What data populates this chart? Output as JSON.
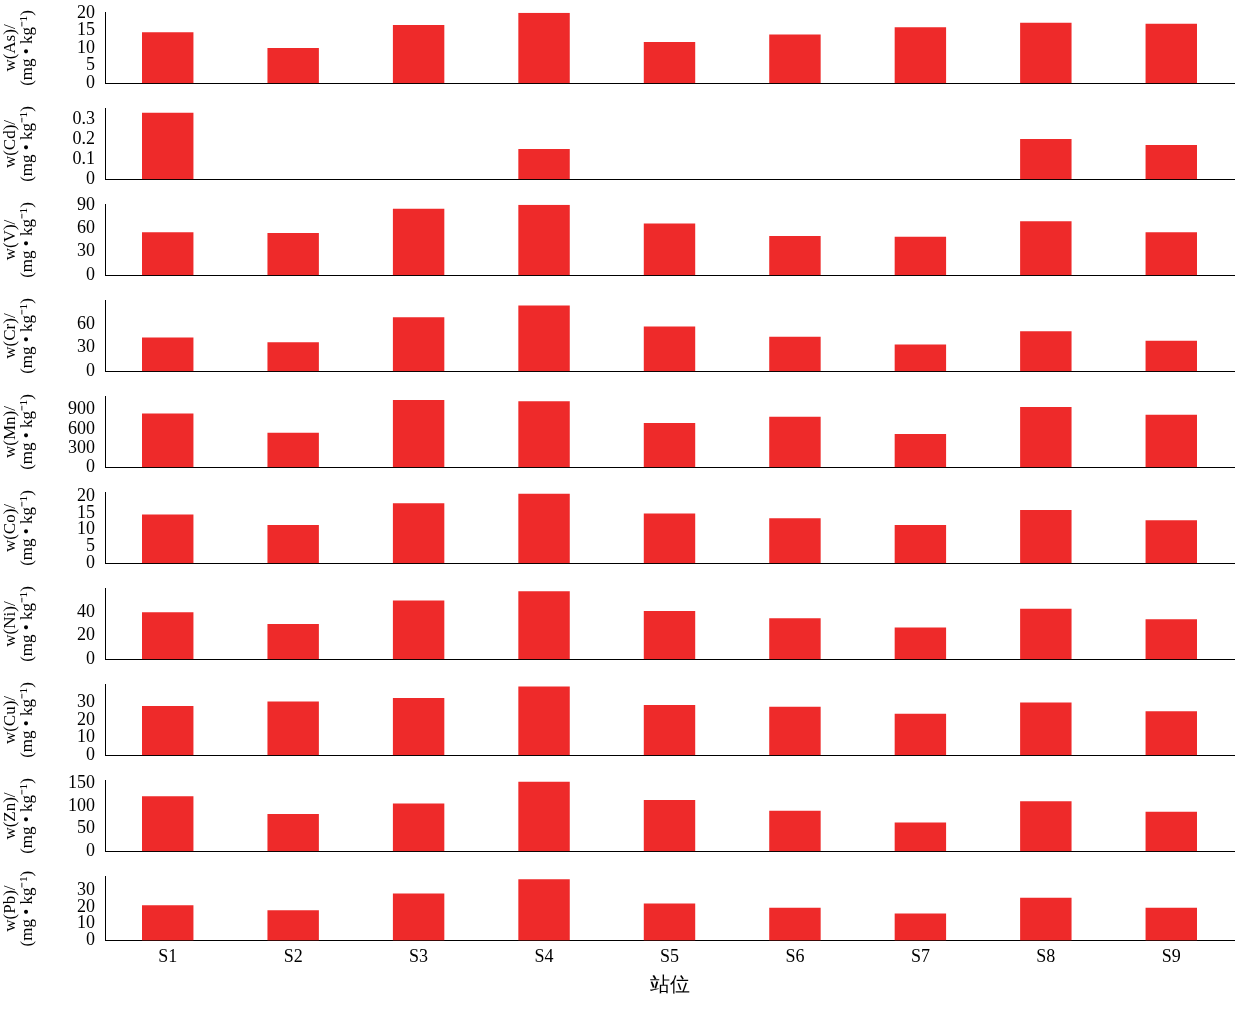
{
  "chart_data": [
    {
      "type": "bar",
      "ylabel": "w(As)/(mg • kg⁻¹)",
      "categories": [
        null,
        null,
        null,
        null,
        null,
        null,
        null,
        null,
        null
      ],
      "values": [
        14.5,
        10,
        16.5,
        20,
        11.7,
        13.8,
        15.9,
        17.2,
        16.9
      ],
      "color": "#ee2a2a",
      "ylim": [
        0,
        20
      ],
      "yticks": [
        0,
        5,
        10,
        15,
        20
      ],
      "tick_labels": "y"
    },
    {
      "type": "bar",
      "ylabel": "w(Cd)/(mg • kg⁻¹)",
      "categories": [
        null,
        null,
        null,
        null,
        null,
        null,
        null,
        null,
        null
      ],
      "values": [
        0.33,
        null,
        null,
        0.15,
        null,
        null,
        null,
        0.2,
        0.17
      ],
      "color": "#ee2a2a",
      "ylim": [
        0,
        0.35
      ],
      "yticks": [
        0,
        0.1,
        0.2,
        0.3
      ],
      "tick_labels": "y"
    },
    {
      "type": "bar",
      "ylabel": "w(V)/(mg • kg⁻¹)",
      "categories": [
        null,
        null,
        null,
        null,
        null,
        null,
        null,
        null,
        null
      ],
      "values": [
        55,
        54,
        85,
        90,
        66,
        50,
        49,
        69,
        55
      ],
      "color": "#ee2a2a",
      "ylim": [
        0,
        90
      ],
      "yticks": [
        0,
        30,
        60,
        90
      ],
      "tick_labels": "y"
    },
    {
      "type": "bar",
      "ylabel": "w(Cr)/(mg • kg⁻¹)",
      "categories": [
        null,
        null,
        null,
        null,
        null,
        null,
        null,
        null,
        null
      ],
      "values": [
        43,
        37,
        69,
        84,
        57,
        44,
        34,
        51,
        39
      ],
      "color": "#ee2a2a",
      "ylim": [
        0,
        90
      ],
      "yticks": [
        0,
        30,
        60
      ],
      "tick_labels": "y"
    },
    {
      "type": "bar",
      "ylabel": "w(Mn)/(mg • kg⁻¹)",
      "categories": [
        null,
        null,
        null,
        null,
        null,
        null,
        null,
        null,
        null
      ],
      "values": [
        840,
        540,
        1050,
        1030,
        690,
        790,
        520,
        940,
        820
      ],
      "color": "#ee2a2a",
      "ylim": [
        0,
        1100
      ],
      "yticks": [
        0,
        300,
        600,
        900
      ],
      "tick_labels": "y"
    },
    {
      "type": "bar",
      "ylabel": "w(Co)/(mg • kg⁻¹)",
      "categories": [
        null,
        null,
        null,
        null,
        null,
        null,
        null,
        null,
        null
      ],
      "values": [
        14.5,
        11.4,
        17.9,
        20.7,
        14.8,
        13.4,
        11.4,
        15.9,
        12.8
      ],
      "color": "#ee2a2a",
      "ylim": [
        0,
        21
      ],
      "yticks": [
        0,
        5,
        10,
        15,
        20
      ],
      "tick_labels": "y"
    },
    {
      "type": "bar",
      "ylabel": "w(Ni)/(mg • kg⁻¹)",
      "categories": [
        null,
        null,
        null,
        null,
        null,
        null,
        null,
        null,
        null
      ],
      "values": [
        40,
        30,
        50,
        58,
        41,
        35,
        27,
        43,
        34
      ],
      "color": "#ee2a2a",
      "ylim": [
        0,
        60
      ],
      "yticks": [
        0,
        20,
        40
      ],
      "tick_labels": "y"
    },
    {
      "type": "bar",
      "ylabel": "w(Cu)/(mg • kg⁻¹)",
      "categories": [
        null,
        null,
        null,
        null,
        null,
        null,
        null,
        null,
        null
      ],
      "values": [
        28,
        30.5,
        32.5,
        39,
        28.5,
        27.5,
        23.5,
        30,
        25
      ],
      "color": "#ee2a2a",
      "ylim": [
        0,
        40
      ],
      "yticks": [
        0,
        10,
        20,
        30
      ],
      "tick_labels": "y"
    },
    {
      "type": "bar",
      "ylabel": "w(Zn)/(mg • kg⁻¹)",
      "categories": [
        null,
        null,
        null,
        null,
        null,
        null,
        null,
        null,
        null
      ],
      "values": [
        121,
        82,
        105,
        153,
        113,
        89,
        63,
        110,
        87
      ],
      "color": "#ee2a2a",
      "ylim": [
        0,
        155
      ],
      "yticks": [
        0,
        50,
        100,
        150
      ],
      "tick_labels": "y"
    },
    {
      "type": "bar",
      "xlabel": "站位",
      "ylabel": "w(Pb)/(mg • kg⁻¹)",
      "categories": [
        "S1",
        "S2",
        "S3",
        "S4",
        "S5",
        "S6",
        "S7",
        "S8",
        "S9"
      ],
      "values": [
        21,
        18,
        28,
        36.5,
        22,
        19.5,
        16,
        25.5,
        19.5
      ],
      "color": "#ee2a2a",
      "ylim": [
        0,
        38
      ],
      "yticks": [
        0,
        10,
        20,
        30
      ]
    }
  ]
}
